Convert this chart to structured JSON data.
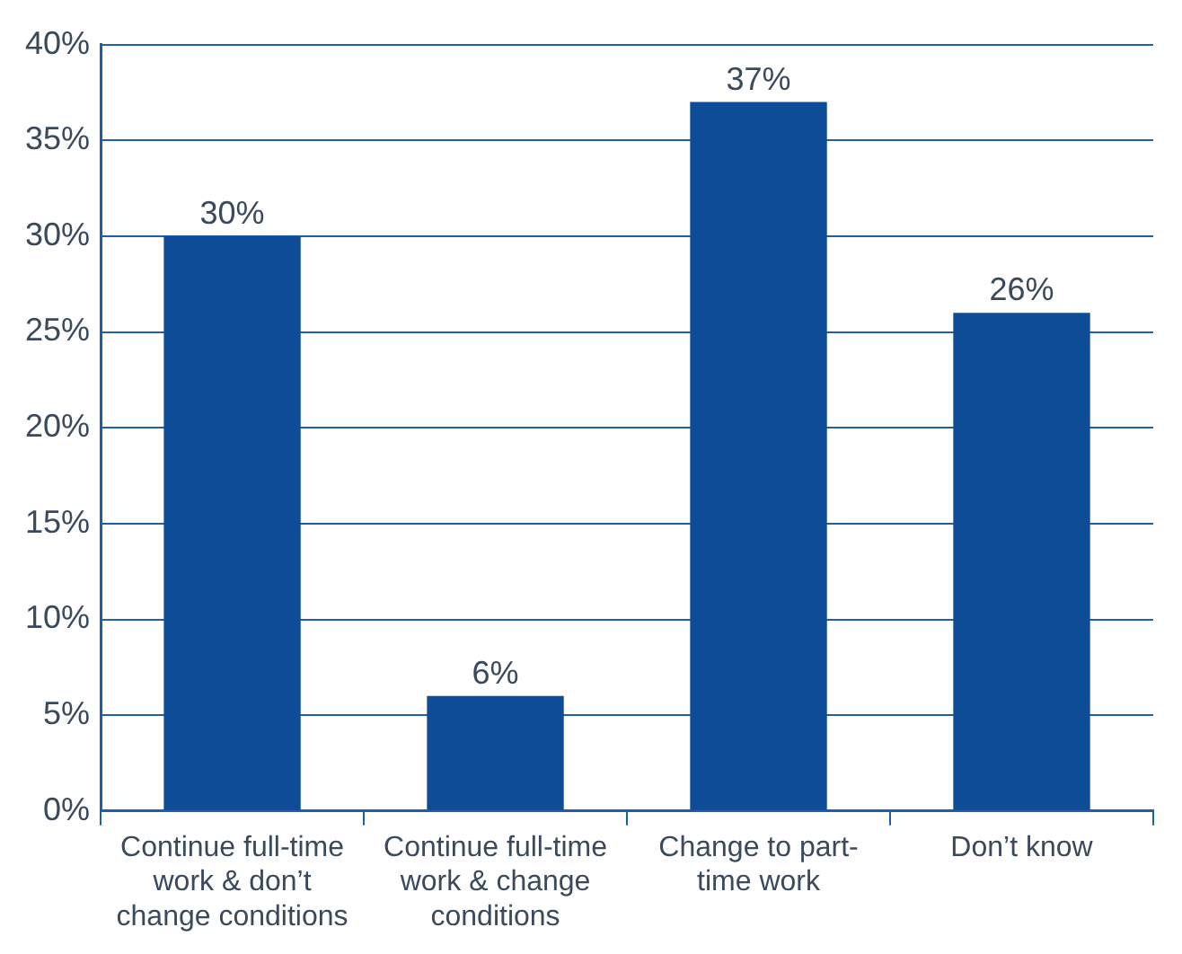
{
  "chart_data": {
    "type": "bar",
    "categories": [
      "Continue full-time work & don’t change conditions",
      "Continue full-time work & change conditions",
      "Change to part-time work",
      "Don’t know"
    ],
    "values": [
      30,
      6,
      37,
      26
    ],
    "value_labels": [
      "30%",
      "6%",
      "37%",
      "26%"
    ],
    "color": "#0f4c97",
    "ylim": [
      0,
      40
    ],
    "yticks": [
      {
        "value": 0,
        "label": "0%"
      },
      {
        "value": 5,
        "label": "5%"
      },
      {
        "value": 10,
        "label": "10%"
      },
      {
        "value": 15,
        "label": "15%"
      },
      {
        "value": 20,
        "label": "20%"
      },
      {
        "value": 25,
        "label": "25%"
      },
      {
        "value": 30,
        "label": "30%"
      },
      {
        "value": 35,
        "label": "35%"
      },
      {
        "value": 40,
        "label": "40%"
      }
    ],
    "grid": "y",
    "legend": false
  }
}
